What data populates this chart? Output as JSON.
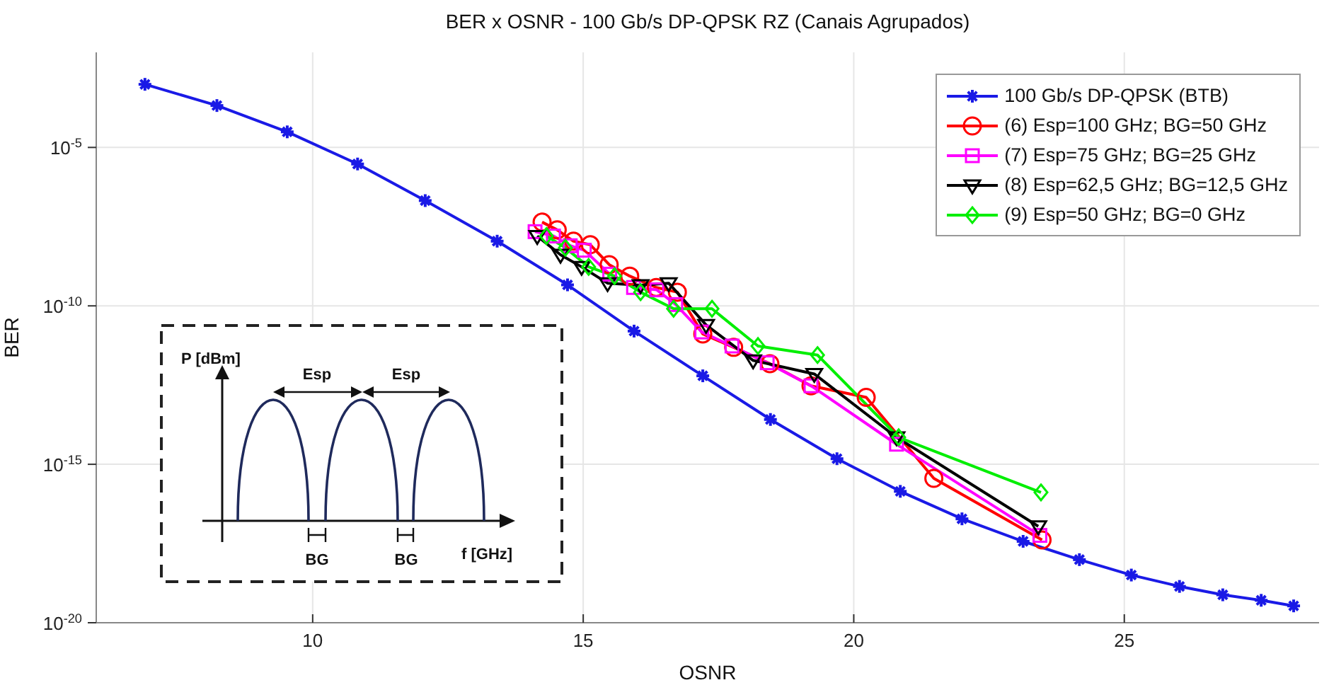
{
  "chart_data": {
    "type": "line",
    "title": "BER x OSNR - 100 Gb/s DP-QPSK RZ (Canais Agrupados)",
    "xlabel": "OSNR",
    "ylabel": "BER",
    "log": "y",
    "grid": true,
    "legend": "top right",
    "xlim": [
      6,
      28.6
    ],
    "xticks": [
      10,
      15,
      20,
      25
    ],
    "ylim": [
      1e-20,
      0.01
    ],
    "yticks": [
      {
        "value": 1e-20,
        "label": "10$^{-20}$"
      },
      {
        "value": 1e-15,
        "label": "10$^{-15}$"
      },
      {
        "value": 1e-10,
        "label": "10$^{-10}$"
      },
      {
        "value": 1e-05,
        "label": "10$^{-5}$"
      }
    ],
    "annotations": [
      "P [dBm]",
      "Esp",
      "Esp",
      "BG",
      "BG",
      "f [GHz]"
    ],
    "series": [
      {
        "name": "100 Gb/s DP-QPSK (BTB)",
        "color": "#1a1ae6",
        "marker": "cross",
        "x": [
          6.9,
          8.23,
          9.53,
          10.83,
          12.08,
          13.41,
          14.71,
          15.94,
          17.21,
          18.46,
          19.69,
          20.86,
          22.0,
          23.13,
          24.17,
          25.13,
          26.02,
          26.82,
          27.53,
          28.13
        ],
        "values": [
          0.00098,
          0.00021,
          3.1e-05,
          3e-06,
          2.1e-07,
          1.1e-08,
          4.6e-10,
          1.6e-11,
          6.2e-13,
          2.6e-14,
          1.5e-15,
          1.4e-16,
          1.9e-17,
          3.7e-18,
          9.8e-19,
          3.2e-19,
          1.4e-19,
          7.6e-20,
          5.1e-20,
          3.4e-20
        ]
      },
      {
        "name": "(6) Esp=100 GHz; BG=50 GHz",
        "color": "#ff0000",
        "marker": "circle",
        "x": [
          14.24,
          14.52,
          14.82,
          15.13,
          15.48,
          15.86,
          16.35,
          16.74,
          17.21,
          17.78,
          18.45,
          19.21,
          20.23,
          21.48,
          23.48
        ],
        "values": [
          4.4e-08,
          2.5e-08,
          1.1e-08,
          8.5e-09,
          2e-09,
          8.7e-10,
          3.8e-10,
          2.7e-10,
          1.3e-11,
          4.9e-12,
          1.5e-12,
          3e-13,
          1.3e-13,
          3.6e-16,
          4.1e-18
        ]
      },
      {
        "name": "(7) Esp=75 GHz; BG=25 GHz",
        "color": "#ff00ff",
        "marker": "square",
        "x": [
          14.11,
          14.45,
          14.76,
          15.02,
          15.49,
          15.93,
          16.36,
          16.71,
          17.19,
          17.75,
          18.4,
          19.21,
          20.79,
          23.44
        ],
        "values": [
          2.2e-08,
          1.6e-08,
          7.9e-09,
          5.7e-09,
          1e-09,
          3.8e-10,
          3.2e-10,
          1.1e-10,
          1.5e-11,
          5.4e-12,
          1.6e-12,
          3e-13,
          4.3e-15,
          5.7e-18
        ]
      },
      {
        "name": "(8) Esp=62,5 GHz; BG=12,5 GHz",
        "color": "#000000",
        "marker": "triangle",
        "x": [
          14.15,
          14.58,
          14.97,
          15.45,
          16.06,
          16.58,
          17.27,
          18.14,
          19.27,
          20.79,
          23.41
        ],
        "values": [
          1.6e-08,
          4.1e-09,
          1.7e-09,
          5.2e-10,
          4.5e-10,
          5.2e-10,
          2.5e-11,
          1.9e-12,
          7.1e-13,
          7.1e-15,
          1.1e-17
        ]
      },
      {
        "name": "(9) Esp=50 GHz; BG=0 GHz",
        "color": "#00ee00",
        "marker": "diamond",
        "x": [
          14.32,
          14.67,
          15.1,
          15.58,
          16.06,
          16.67,
          17.38,
          18.23,
          19.33,
          20.83,
          23.46
        ],
        "values": [
          1.6e-08,
          6.8e-09,
          1.7e-09,
          8.7e-10,
          2.7e-10,
          8.1e-11,
          8.1e-11,
          5.4e-12,
          2.8e-12,
          7.1e-15,
          1.3e-16
        ]
      }
    ]
  }
}
